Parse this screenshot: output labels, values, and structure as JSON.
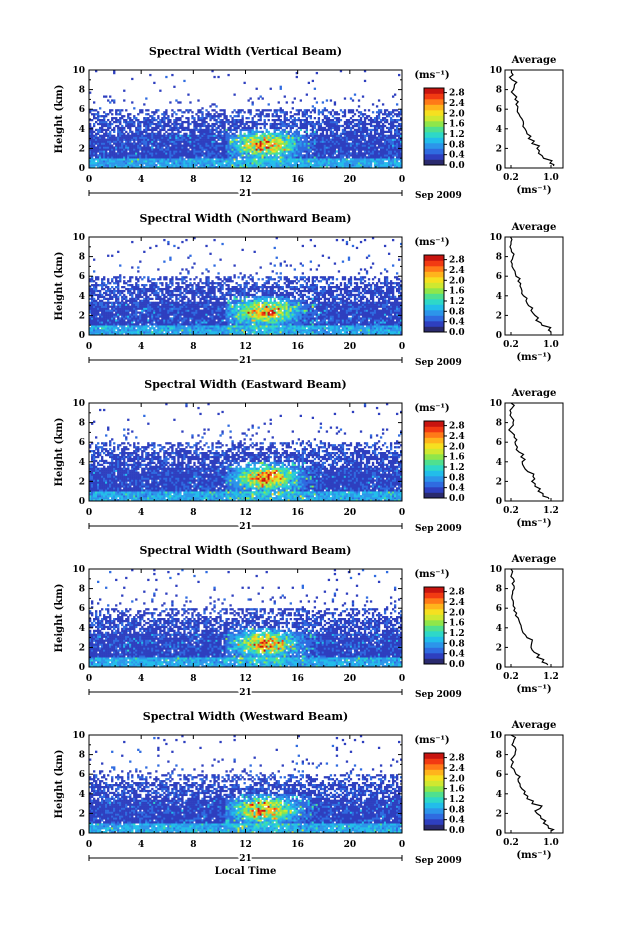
{
  "colors": {
    "colormap": [
      "#2a2a6e",
      "#2e3fbf",
      "#2f6be0",
      "#2c95ea",
      "#22bdea",
      "#2ed8c8",
      "#4fe08f",
      "#8fe64a",
      "#cfe830",
      "#f6e020",
      "#ffb41c",
      "#ff7a18",
      "#f23a12",
      "#c8140f"
    ],
    "profile_line": "#000000",
    "background": "#ffffff"
  },
  "shared": {
    "ylabel": "Height (km)",
    "unit": "(ms⁻¹)",
    "avg_title": "Average",
    "avg_xlabel": "(ms⁻¹)",
    "date_day": "21",
    "date_label": "Sep 2009",
    "xlabel": "Local Time",
    "x_ticks": [
      "0",
      "4",
      "8",
      "12",
      "16",
      "20",
      "0"
    ],
    "y_ticks": [
      "0",
      "2",
      "4",
      "6",
      "8",
      "10"
    ],
    "colorbar_ticks": [
      "0.0",
      "0.4",
      "0.8",
      "1.2",
      "1.6",
      "2.0",
      "2.4",
      "2.8"
    ]
  },
  "panels": [
    {
      "title": "Spectral Width (Vertical Beam)",
      "avg_ticks": [
        "0.2",
        "1.0"
      ]
    },
    {
      "title": "Spectral Width (Northward Beam)",
      "avg_ticks": [
        "0.2",
        "1.0"
      ]
    },
    {
      "title": "Spectral Width (Eastward Beam)",
      "avg_ticks": [
        "0.2",
        "1.2"
      ]
    },
    {
      "title": "Spectral Width (Southward Beam)",
      "avg_ticks": [
        "0.2",
        "1.2"
      ]
    },
    {
      "title": "Spectral Width (Westward Beam)",
      "avg_ticks": [
        "0.2",
        "1.0"
      ]
    }
  ],
  "chart_data": [
    {
      "type": "heatmap",
      "title": "Spectral Width (Vertical Beam)",
      "xlabel": "",
      "ylabel": "Height (km)",
      "xlim": [
        0,
        24
      ],
      "ylim": [
        0,
        10
      ],
      "clim": [
        0.0,
        2.8
      ],
      "colorbar_label": "(ms⁻¹)",
      "summary": "Mostly low values (0.2-0.6) below 6 km; enhanced values (1.6-2.8) near 12-16 LT below 3 km; sparse echoes above 6 km.",
      "average_profile": {
        "xlim": [
          0.2,
          1.0
        ],
        "height_km": [
          0.2,
          0.5,
          1,
          1.5,
          2,
          2.5,
          3,
          3.5,
          4,
          4.5,
          5,
          5.5,
          6,
          6.5,
          7,
          7.5,
          8,
          8.5,
          9,
          9.5,
          10
        ],
        "width": [
          1.05,
          0.98,
          0.85,
          0.75,
          0.72,
          0.62,
          0.55,
          0.52,
          0.48,
          0.45,
          0.42,
          0.36,
          0.33,
          0.3,
          0.28,
          0.26,
          0.25,
          0.27,
          0.22,
          0.24,
          0.21
        ]
      }
    },
    {
      "type": "heatmap",
      "title": "Spectral Width (Northward Beam)",
      "xlabel": "",
      "ylabel": "Height (km)",
      "xlim": [
        0,
        24
      ],
      "ylim": [
        0,
        10
      ],
      "clim": [
        0.0,
        2.8
      ],
      "colorbar_label": "(ms⁻¹)",
      "summary": "Low values below 6 km with enhanced values near 12-16 LT below 3 km.",
      "average_profile": {
        "xlim": [
          0.2,
          1.0
        ],
        "height_km": [
          0.2,
          0.5,
          1,
          1.5,
          2,
          2.5,
          3,
          3.5,
          4,
          4.5,
          5,
          5.5,
          6,
          6.5,
          7,
          7.5,
          8,
          8.5,
          9,
          9.5,
          10
        ],
        "width": [
          1.0,
          0.95,
          0.82,
          0.7,
          0.68,
          0.6,
          0.55,
          0.5,
          0.45,
          0.42,
          0.38,
          0.34,
          0.3,
          0.28,
          0.22,
          0.2,
          0.24,
          0.21,
          0.18,
          0.2,
          0.19
        ]
      }
    },
    {
      "type": "heatmap",
      "title": "Spectral Width (Eastward Beam)",
      "xlabel": "",
      "ylabel": "Height (km)",
      "xlim": [
        0,
        24
      ],
      "ylim": [
        0,
        10
      ],
      "clim": [
        0.0,
        2.8
      ],
      "colorbar_label": "(ms⁻¹)",
      "summary": "Low values below 6 km; enhanced values near 12-16 LT between 1 and 4 km.",
      "average_profile": {
        "xlim": [
          0.2,
          1.2
        ],
        "height_km": [
          0.2,
          0.5,
          1,
          1.5,
          2,
          2.5,
          3,
          3.5,
          4,
          4.5,
          5,
          5.5,
          6,
          6.5,
          7,
          7.5,
          8,
          8.5,
          9,
          9.5,
          10
        ],
        "width": [
          1.15,
          1.0,
          0.88,
          0.8,
          0.72,
          0.75,
          0.62,
          0.52,
          0.48,
          0.45,
          0.4,
          0.36,
          0.3,
          0.28,
          0.22,
          0.2,
          0.25,
          0.22,
          0.2,
          0.23,
          0.2
        ]
      }
    },
    {
      "type": "heatmap",
      "title": "Spectral Width (Southward Beam)",
      "xlabel": "",
      "ylabel": "Height (km)",
      "xlim": [
        0,
        24
      ],
      "ylim": [
        0,
        10
      ],
      "clim": [
        0.0,
        2.8
      ],
      "colorbar_label": "(ms⁻¹)",
      "summary": "Low values below 6 km; enhanced values near 12-16 LT between 1 and 4 km.",
      "average_profile": {
        "xlim": [
          0.2,
          1.2
        ],
        "height_km": [
          0.2,
          0.5,
          1,
          1.5,
          2,
          2.5,
          3,
          3.5,
          4,
          4.5,
          5,
          5.5,
          6,
          6.5,
          7,
          7.5,
          8,
          8.5,
          9,
          9.5,
          10
        ],
        "width": [
          1.12,
          0.98,
          0.85,
          0.78,
          0.7,
          0.72,
          0.6,
          0.5,
          0.46,
          0.42,
          0.38,
          0.34,
          0.3,
          0.26,
          0.22,
          0.24,
          0.28,
          0.23,
          0.26,
          0.22,
          0.2
        ]
      }
    },
    {
      "type": "heatmap",
      "title": "Spectral Width (Westward Beam)",
      "xlabel": "Local Time",
      "ylabel": "Height (km)",
      "xlim": [
        0,
        24
      ],
      "ylim": [
        0,
        10
      ],
      "clim": [
        0.0,
        2.8
      ],
      "colorbar_label": "(ms⁻¹)",
      "summary": "Low values below 6 km; enhanced values near 12-16 LT below 3 km.",
      "average_profile": {
        "xlim": [
          0.2,
          1.0
        ],
        "height_km": [
          0.2,
          0.5,
          1,
          1.5,
          2,
          2.5,
          3,
          3.5,
          4,
          4.5,
          5,
          5.5,
          6,
          6.5,
          7,
          7.5,
          8,
          8.5,
          9,
          9.5,
          10
        ],
        "width": [
          1.0,
          0.95,
          0.85,
          0.8,
          0.72,
          0.78,
          0.62,
          0.52,
          0.46,
          0.42,
          0.38,
          0.34,
          0.3,
          0.26,
          0.22,
          0.2,
          0.28,
          0.3,
          0.22,
          0.26,
          0.2
        ]
      }
    }
  ]
}
